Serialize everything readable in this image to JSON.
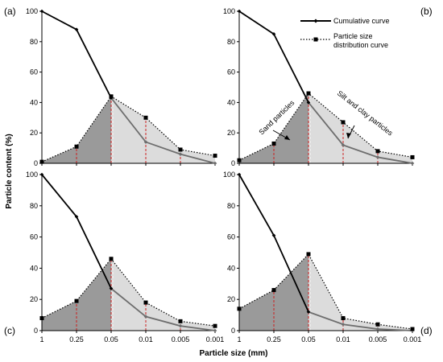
{
  "figure": {
    "ylabel": "Particle content (%)",
    "xlabel": "Particle size (mm)",
    "legend": {
      "cumulative": "Cumulative curve",
      "distribution_line1": "Particle size",
      "distribution_line2": "distribution curve"
    },
    "annotations": {
      "sand": "Sand particles",
      "silt_clay": "Silt and clay particles"
    }
  },
  "chart_data": [
    {
      "type": "line",
      "panel_label": "(a)",
      "categories": [
        "1",
        "0.25",
        "0.05",
        "0.01",
        "0.005",
        "0.001"
      ],
      "series": [
        {
          "name": "Cumulative curve",
          "values": [
            100,
            88,
            43,
            14,
            6,
            0
          ]
        },
        {
          "name": "Particle size distribution curve",
          "values": [
            1,
            11,
            44,
            30,
            9,
            5
          ]
        }
      ],
      "ylim": [
        0,
        100
      ],
      "yticks": [
        0,
        20,
        40,
        60,
        80,
        100
      ],
      "show_xticklabels": false,
      "legend": false
    },
    {
      "type": "line",
      "panel_label": "(b)",
      "categories": [
        "1",
        "0.25",
        "0.05",
        "0.01",
        "0.005",
        "0.001"
      ],
      "series": [
        {
          "name": "Cumulative curve",
          "values": [
            100,
            85,
            40,
            12,
            4,
            0
          ]
        },
        {
          "name": "Particle size distribution curve",
          "values": [
            2,
            13,
            46,
            27,
            8,
            4
          ]
        }
      ],
      "ylim": [
        0,
        100
      ],
      "yticks": [
        0,
        20,
        40,
        60,
        80,
        100
      ],
      "show_xticklabels": false,
      "legend": true,
      "legend_position": "top-right"
    },
    {
      "type": "line",
      "panel_label": "(c)",
      "categories": [
        "1",
        "0.25",
        "0.05",
        "0.01",
        "0.005",
        "0.001"
      ],
      "series": [
        {
          "name": "Cumulative curve",
          "values": [
            100,
            73,
            27,
            9,
            3,
            0
          ]
        },
        {
          "name": "Particle size distribution curve",
          "values": [
            8,
            19,
            46,
            18,
            6,
            3
          ]
        }
      ],
      "ylim": [
        0,
        100
      ],
      "yticks": [
        0,
        20,
        40,
        60,
        80,
        100
      ],
      "show_xticklabels": true,
      "legend": false
    },
    {
      "type": "line",
      "panel_label": "(d)",
      "categories": [
        "1",
        "0.25",
        "0.05",
        "0.01",
        "0.005",
        "0.001"
      ],
      "series": [
        {
          "name": "Cumulative curve",
          "values": [
            100,
            61,
            12,
            4,
            1,
            0
          ]
        },
        {
          "name": "Particle size distribution curve",
          "values": [
            14,
            26,
            49,
            8,
            4,
            1
          ]
        }
      ],
      "ylim": [
        0,
        100
      ],
      "yticks": [
        0,
        20,
        40,
        60,
        80,
        100
      ],
      "show_xticklabels": true,
      "legend": false
    }
  ],
  "colors": {
    "sand_fill": "#9a9a9a",
    "silt_fill": "#dcdcdc",
    "cumulative_line_top": "#000000",
    "cumulative_line_bottom": "#6e6e6e",
    "distribution_marker": "#000000",
    "divider": "#cc1f1f",
    "divider_light": "#ffffff"
  }
}
